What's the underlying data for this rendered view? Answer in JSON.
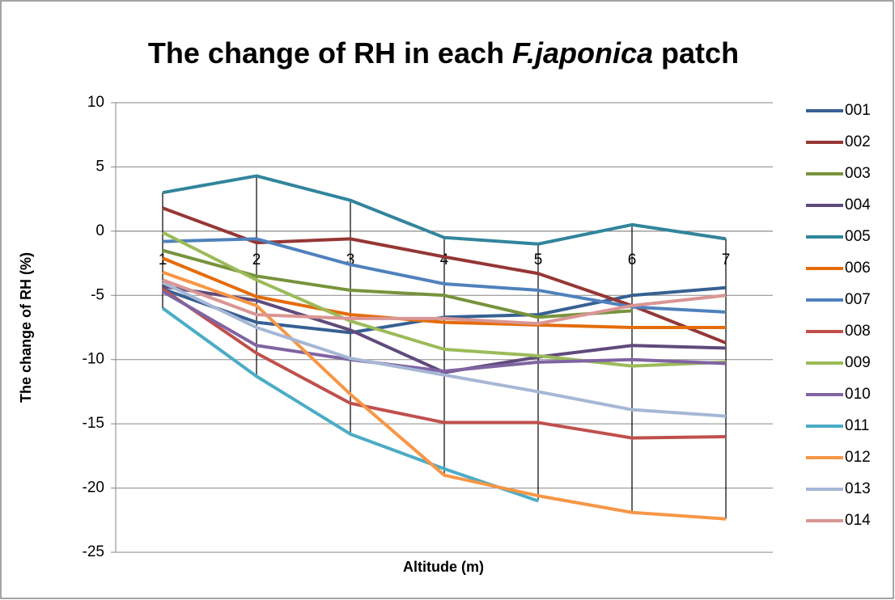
{
  "chart_data": {
    "type": "line",
    "title": [
      "The change of RH in each ",
      "F.japonica",
      " patch"
    ],
    "x_label": "Altitude (m)",
    "y_label": "The change of RH (%)",
    "categories": [
      "1",
      "2",
      "3",
      "4",
      "5",
      "6",
      "7"
    ],
    "ylim": [
      -25,
      10
    ],
    "yticks": [
      -25,
      -20,
      -15,
      -10,
      -5,
      0,
      5,
      10
    ],
    "grid": true,
    "high_low_lines": true,
    "legend": "right",
    "series": [
      {
        "name": "001",
        "color": "#376092",
        "values": [
          -4.5,
          -7.1,
          -7.9,
          -6.7,
          -6.5,
          -5.0,
          -4.4
        ]
      },
      {
        "name": "002",
        "color": "#953735",
        "values": [
          1.8,
          -0.9,
          -0.6,
          -2.0,
          -3.3,
          -5.8,
          -8.7
        ]
      },
      {
        "name": "003",
        "color": "#77933c",
        "values": [
          -1.5,
          -3.5,
          -4.6,
          -5.0,
          -6.7,
          -6.2,
          null
        ]
      },
      {
        "name": "004",
        "color": "#604a7b",
        "values": [
          -4.3,
          -5.4,
          -7.7,
          -11.0,
          -9.8,
          -8.9,
          -9.1
        ]
      },
      {
        "name": "005",
        "color": "#31859c",
        "values": [
          3.0,
          4.3,
          2.4,
          -0.5,
          -1.0,
          0.5,
          -0.6
        ]
      },
      {
        "name": "006",
        "color": "#e46c0a",
        "values": [
          -2.1,
          -5.1,
          -6.5,
          -7.1,
          -7.3,
          -7.5,
          -7.5
        ]
      },
      {
        "name": "007",
        "color": "#4f81bd",
        "values": [
          -0.8,
          -0.6,
          -2.6,
          -4.1,
          -4.6,
          -5.9,
          -6.3
        ]
      },
      {
        "name": "008",
        "color": "#c0504d",
        "values": [
          -4.5,
          -9.5,
          -13.4,
          -14.9,
          -14.9,
          -16.1,
          -16.0
        ]
      },
      {
        "name": "009",
        "color": "#9bbb59",
        "values": [
          -0.1,
          -3.8,
          -7.0,
          -9.2,
          -9.7,
          -10.5,
          -10.2
        ]
      },
      {
        "name": "010",
        "color": "#8064a2",
        "values": [
          -4.7,
          -8.9,
          -10.0,
          -10.9,
          -10.2,
          -10.0,
          -10.3
        ]
      },
      {
        "name": "011",
        "color": "#4bacc6",
        "values": [
          -6.0,
          -11.3,
          -15.8,
          -18.5,
          -21.0,
          null,
          null
        ]
      },
      {
        "name": "012",
        "color": "#f79646",
        "values": [
          -3.2,
          -5.8,
          -12.7,
          -19.0,
          -20.6,
          -21.9,
          -22.4
        ]
      },
      {
        "name": "013",
        "color": "#a6b7d5",
        "values": [
          -4.0,
          -7.5,
          -9.9,
          -11.2,
          -12.5,
          -13.9,
          -14.4
        ]
      },
      {
        "name": "014",
        "color": "#d99694",
        "values": [
          -3.8,
          -6.5,
          -6.8,
          -6.8,
          -7.2,
          -5.8,
          -5.0
        ]
      }
    ]
  }
}
